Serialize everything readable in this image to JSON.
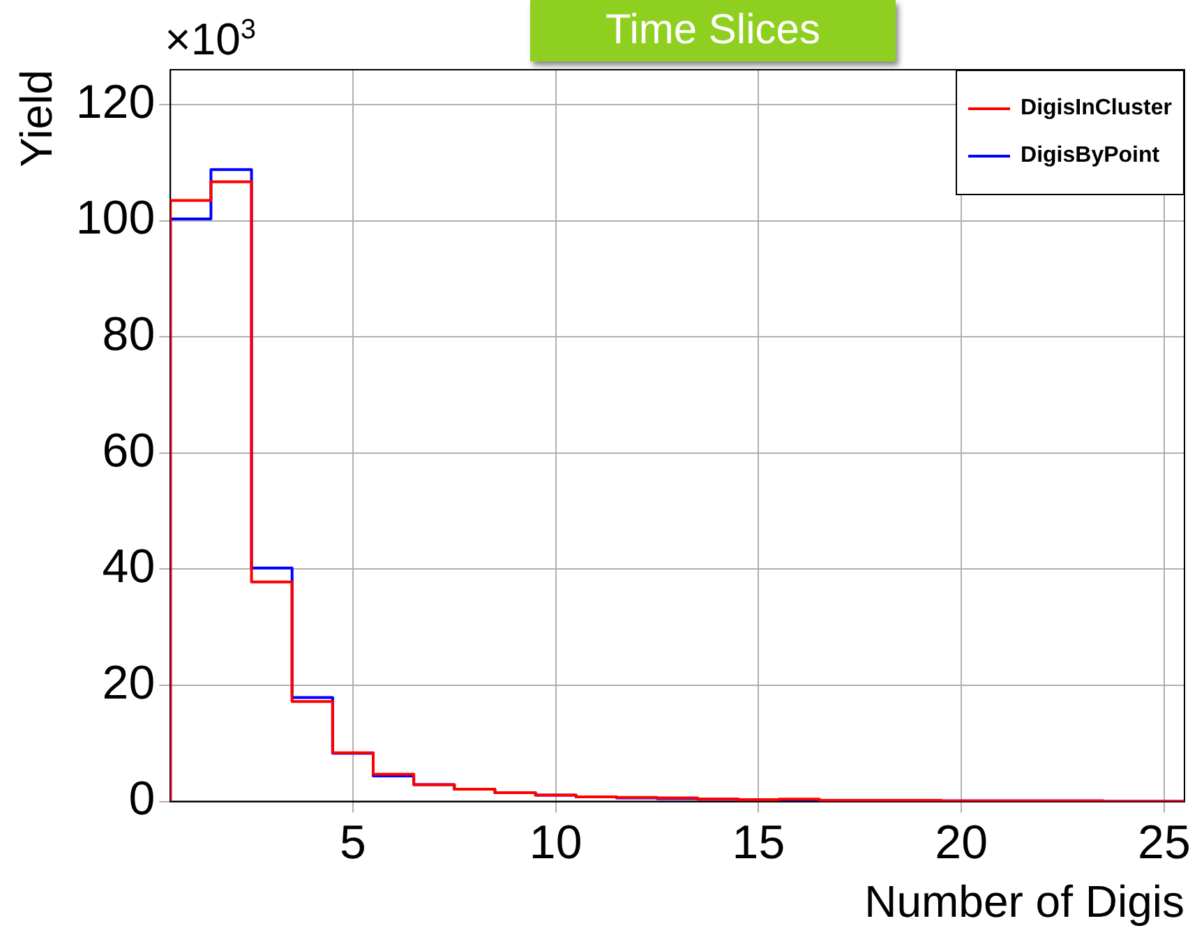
{
  "chart_data": {
    "type": "histogram",
    "title": "Time Slices",
    "xlabel": "Number of Digis",
    "ylabel": "Yield",
    "annotations": [
      "×10$^{3}$"
    ],
    "bins": [
      0.5,
      1.5,
      2.5,
      3.5,
      4.5,
      5.5,
      6.5,
      7.5,
      8.5,
      9.5,
      10.5,
      11.5,
      12.5,
      13.5,
      14.5,
      15.5,
      16.5,
      17.5,
      18.5,
      19.5,
      20.5,
      21.5,
      22.5,
      23.5,
      24.5,
      25.5
    ],
    "series": [
      {
        "name": "DigisInCluster",
        "color": "#ff0000",
        "values": [
          103.5,
          106.7,
          37.8,
          17.2,
          8.4,
          4.7,
          2.9,
          2.1,
          1.5,
          1.1,
          0.8,
          0.7,
          0.6,
          0.4,
          0.3,
          0.4,
          0.2,
          0.2,
          0.2,
          0.1,
          0.1,
          0.1,
          0.1,
          0,
          0
        ]
      },
      {
        "name": "DigisByPoint",
        "color": "#0000ff",
        "values": [
          100.3,
          108.8,
          40.2,
          17.9,
          8.3,
          4.4,
          2.9,
          2.1,
          1.5,
          1.1,
          0.8,
          0.6,
          0.5,
          0.4,
          0.3,
          0.3,
          0.2,
          0.2,
          0.2,
          0.1,
          0.1,
          0.1,
          0.1,
          0,
          0
        ]
      }
    ],
    "xlim": [
      0.5,
      25.5
    ],
    "xticks": [
      5,
      10,
      15,
      20,
      25
    ],
    "ylim": [
      0,
      126
    ],
    "yticks": [
      0,
      20,
      40,
      60,
      80,
      100,
      120
    ],
    "grid": true,
    "legend": "top right"
  }
}
